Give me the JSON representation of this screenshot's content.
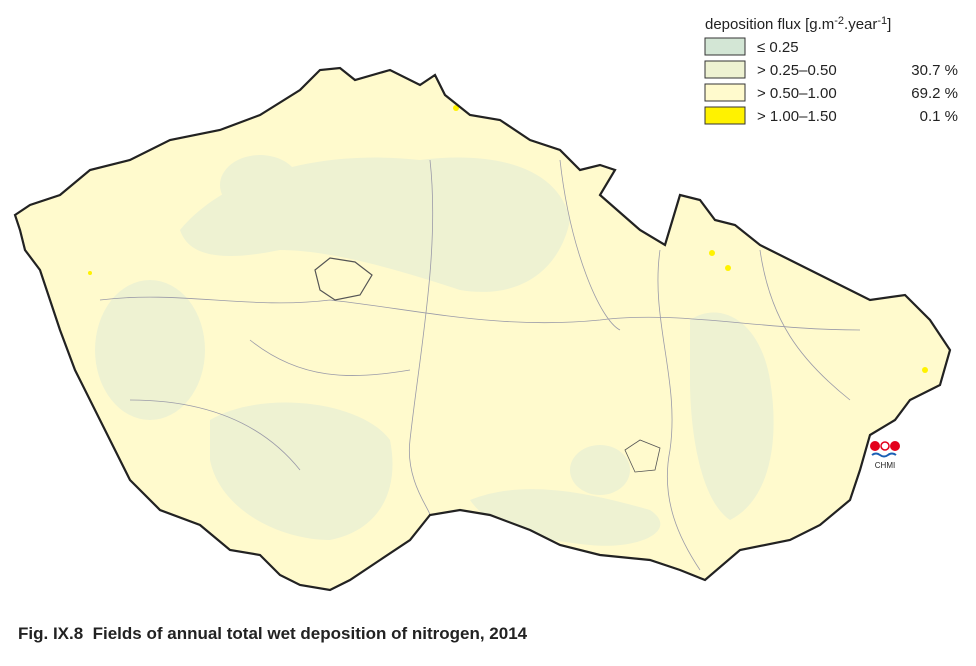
{
  "legend": {
    "title": {
      "text": "deposition flux [g.m",
      "sup1": "-2",
      "mid": ".year",
      "sup2": "-1",
      "end": "]"
    },
    "items": [
      {
        "label": "≤ 0.25"
      },
      {
        "label": "> 0.25–0.50",
        "share": "30.7 %"
      },
      {
        "label": "> 0.50–1.00",
        "share": "69.2 %"
      },
      {
        "label": "> 1.00–1.50",
        "share": "0.1 %"
      }
    ]
  },
  "logo": "CHMI",
  "caption": "Fig. IX.8  Fields of annual total wet deposition of nitrogen, 2014"
}
